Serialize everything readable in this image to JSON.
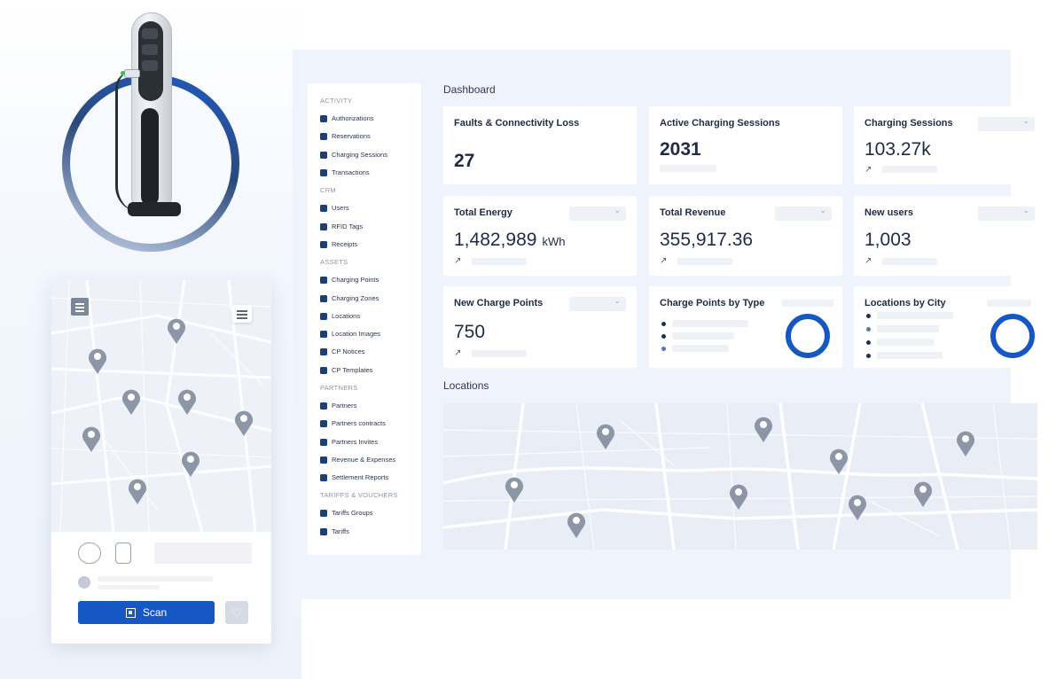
{
  "dashboard": {
    "title": "Dashboard",
    "cards": [
      {
        "title": "Faults & Connectivity Loss",
        "value": "27"
      },
      {
        "title": "Active Charging Sessions",
        "value": "2031"
      },
      {
        "title": "Charging Sessions",
        "value": "103.27k"
      },
      {
        "title": "Total Energy",
        "value": "1,482,989",
        "unit": "kWh"
      },
      {
        "title": "Total Revenue",
        "value": "355,917.36"
      },
      {
        "title": "New users",
        "value": "1,003"
      },
      {
        "title": "New Charge Points",
        "value": "750"
      },
      {
        "title": "Charge Points by Type"
      },
      {
        "title": "Locations by City"
      }
    ],
    "locations_title": "Locations"
  },
  "sidebar": {
    "sections": [
      {
        "label": "ACTIVITY",
        "items": [
          "Authorizations",
          "Reservations",
          "Charging Sessions",
          "Transactions"
        ]
      },
      {
        "label": "CRM",
        "items": [
          "Users",
          "RFID Tags",
          "Receipts"
        ]
      },
      {
        "label": "ASSETS",
        "items": [
          "Charging Points",
          "Charging Zones",
          "Locations",
          "Location Images",
          "CP Notices",
          "CP Templates"
        ]
      },
      {
        "label": "PARTNERS",
        "items": [
          "Partners",
          "Partners contracts",
          "Partners Invites",
          "Revenue & Expenses",
          "Settlement Reports"
        ]
      },
      {
        "label": "TARIFFS & VOUCHERS",
        "items": [
          "Tariffs Groups",
          "Tariffs"
        ]
      }
    ]
  },
  "mobile": {
    "scan_label": "Scan"
  },
  "colors": {
    "accent": "#1558c4",
    "navy": "#1c3f7a",
    "pin": "#8c96a6",
    "legend_dark": "#1c2f55",
    "legend_mid": "#5677b0"
  }
}
